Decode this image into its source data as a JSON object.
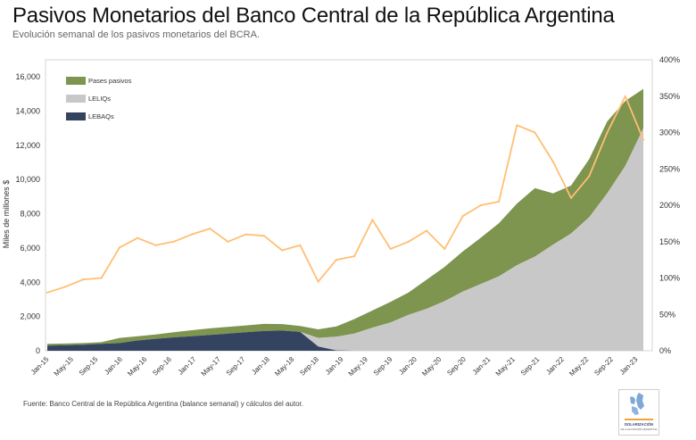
{
  "title": "Pasivos Monetarios del Banco Central de la República Argentina",
  "subtitle": "Evolución semanal de los pasivos monetarios del BCRA.",
  "source": "Fuente: Banco Central de la República Argentina (balance semanal) y cálculos del autor.",
  "chart_data": {
    "type": "area",
    "ylabel": "Miles de millones $",
    "ylim": [
      0,
      17000
    ],
    "y_ticks": [
      "0",
      "2,000",
      "4,000",
      "6,000",
      "8,000",
      "10,000",
      "12,000",
      "14,000",
      "16,000"
    ],
    "y2lim": [
      0,
      400
    ],
    "y2_ticks": [
      "0%",
      "50%",
      "100%",
      "150%",
      "200%",
      "250%",
      "300%",
      "350%",
      "400%"
    ],
    "x_ticks": [
      "Jan-15",
      "May-15",
      "Sep-15",
      "Jan-16",
      "May-16",
      "Sep-16",
      "Jan-17",
      "May-17",
      "Sep-17",
      "Jan-18",
      "May-18",
      "Sep-18",
      "Jan-19",
      "May-19",
      "Sep-19",
      "Jan-20",
      "May-20",
      "Sep-20",
      "Jan-21",
      "May-21",
      "Sep-21",
      "Jan-22",
      "May-22",
      "Sep-22",
      "Jan-23"
    ],
    "legend_placement": "top-left",
    "colors": {
      "lebaqs": "#34435f",
      "lelios": "#c8c8c8",
      "pases": "#7e9550",
      "line": "#ffbf73"
    },
    "x": [
      "Jan-15",
      "Apr-15",
      "Jul-15",
      "Oct-15",
      "Jan-16",
      "Apr-16",
      "Jul-16",
      "Oct-16",
      "Jan-17",
      "Apr-17",
      "Jul-17",
      "Oct-17",
      "Jan-18",
      "Apr-18",
      "Jul-18",
      "Oct-18",
      "Jan-19",
      "Apr-19",
      "Jul-19",
      "Oct-19",
      "Jan-20",
      "Apr-20",
      "Jul-20",
      "Oct-20",
      "Jan-21",
      "Apr-21",
      "Jul-21",
      "Oct-21",
      "Jan-22",
      "Apr-22",
      "Jul-22",
      "Oct-22",
      "Jan-23",
      "Apr-23"
    ],
    "series": [
      {
        "name": "LEBAQs",
        "values": [
          300,
          320,
          350,
          400,
          450,
          600,
          700,
          780,
          850,
          930,
          1000,
          1080,
          1150,
          1180,
          1100,
          250,
          20,
          0,
          0,
          0,
          0,
          0,
          0,
          0,
          0,
          0,
          0,
          0,
          0,
          0,
          0,
          0,
          0,
          0
        ]
      },
      {
        "name": "LELIQs",
        "values": [
          0,
          0,
          0,
          0,
          0,
          0,
          0,
          0,
          0,
          0,
          0,
          0,
          0,
          0,
          0,
          500,
          800,
          1000,
          1350,
          1650,
          2100,
          2450,
          2900,
          3450,
          3900,
          4350,
          5000,
          5500,
          6200,
          6850,
          7800,
          9200,
          10800,
          13000
        ]
      },
      {
        "name": "Pases pasivos",
        "values": [
          100,
          100,
          100,
          100,
          300,
          250,
          250,
          300,
          350,
          380,
          400,
          400,
          420,
          380,
          350,
          500,
          600,
          850,
          1000,
          1200,
          1300,
          1700,
          2000,
          2350,
          2700,
          3100,
          3600,
          4000,
          3000,
          2800,
          3400,
          4200,
          3800,
          2300
        ]
      },
      {
        "name": "",
        "values": [
          80,
          88,
          98,
          100,
          142,
          155,
          145,
          150,
          160,
          168,
          150,
          160,
          158,
          138,
          145,
          95,
          125,
          130,
          180,
          140,
          150,
          165,
          140,
          185,
          200,
          205,
          310,
          300,
          260,
          210,
          240,
          300,
          350,
          290
        ]
      }
    ]
  },
  "logo": {
    "text": "DOLARIZACIÓN",
    "subtext": "DE LA ECONOMÍA ARGENTINA"
  }
}
